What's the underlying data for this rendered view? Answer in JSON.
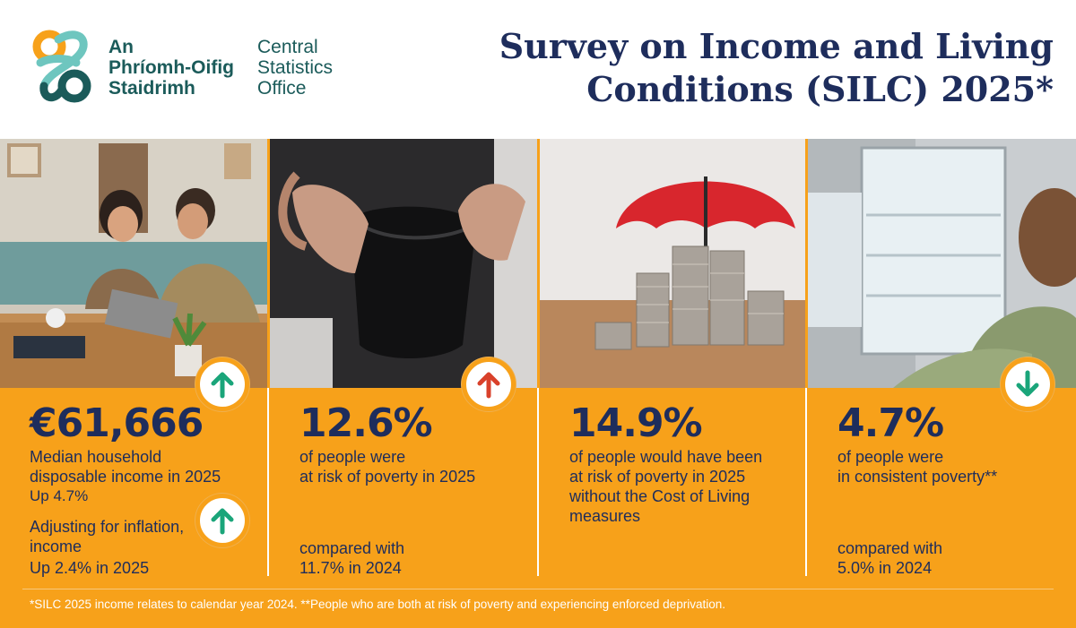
{
  "organisation": {
    "irish_lines": [
      "An",
      "Phríomh-Oifig",
      "Staidrimh"
    ],
    "english_lines": [
      "Central",
      "Statistics",
      "Office"
    ]
  },
  "title_lines": [
    "Survey on Income and Living",
    "Conditions (SILC) 2025*"
  ],
  "colors": {
    "navy": "#1e2d5c",
    "orange": "#f7a11a",
    "teal": "#1b5b5a",
    "up_green": "#1aa57a",
    "up_red": "#d9412b"
  },
  "panels": [
    {
      "figure": "€61,666",
      "description_lines": [
        "Median household",
        "disposable income in 2025"
      ],
      "change": "Up 4.7%",
      "inflation_lines": [
        "Adjusting for inflation,",
        "income"
      ],
      "inflation_change": "Up 2.4% in 2025",
      "indicator": "up-arrow-icon",
      "indicator_color": "#1aa57a"
    },
    {
      "figure": "12.6%",
      "description_lines": [
        "of people were",
        "at risk of poverty in 2025"
      ],
      "comparison_lines": [
        "compared with",
        "11.7% in 2024"
      ],
      "indicator": "up-arrow-icon",
      "indicator_color": "#d9412b"
    },
    {
      "figure": "14.9%",
      "description_lines": [
        "of people would have been",
        "at risk of poverty in 2025",
        "without the Cost of Living",
        "measures"
      ]
    },
    {
      "figure": "4.7%",
      "description_lines": [
        "of people were",
        "in consistent poverty**"
      ],
      "comparison_lines": [
        "compared with",
        "5.0% in 2024"
      ],
      "indicator": "down-arrow-icon",
      "indicator_color": "#1aa57a"
    }
  ],
  "footnote": "*SILC 2025 income relates to calendar year 2024. **People who are both at risk of poverty and experiencing enforced deprivation."
}
